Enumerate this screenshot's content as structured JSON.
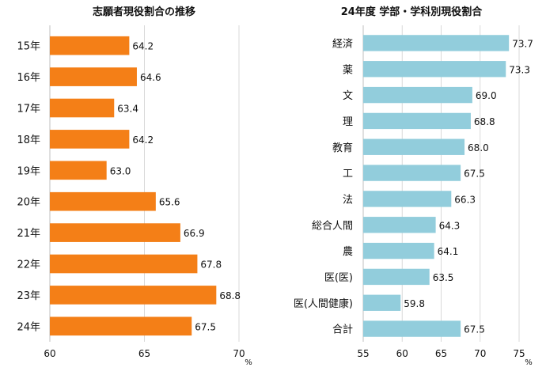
{
  "chart_data": [
    {
      "type": "bar",
      "orientation": "horizontal",
      "title": "志願者現役割合の推移",
      "categories": [
        "15年",
        "16年",
        "17年",
        "18年",
        "19年",
        "20年",
        "21年",
        "22年",
        "23年",
        "24年"
      ],
      "values": [
        64.2,
        64.6,
        63.4,
        64.2,
        63.0,
        65.6,
        66.9,
        67.8,
        68.8,
        67.5
      ],
      "value_labels": [
        "64.2",
        "64.6",
        "63.4",
        "64.2",
        "63.0",
        "65.6",
        "66.9",
        "67.8",
        "68.8",
        "67.5"
      ],
      "xlim": [
        60,
        70
      ],
      "xticks": [
        "60",
        "65",
        "70"
      ],
      "xunit": "%",
      "grid": true,
      "color": "#F47F17"
    },
    {
      "type": "bar",
      "orientation": "horizontal",
      "title": "24年度 学部・学科別現役割合",
      "categories": [
        "経済",
        "薬",
        "文",
        "理",
        "教育",
        "工",
        "法",
        "総合人間",
        "農",
        "医(医)",
        "医(人間健康)",
        "合計"
      ],
      "values": [
        73.7,
        73.3,
        69.0,
        68.8,
        68.0,
        67.5,
        66.3,
        64.3,
        64.1,
        63.5,
        59.8,
        67.5
      ],
      "value_labels": [
        "73.7",
        "73.3",
        "69.0",
        "68.8",
        "68.0",
        "67.5",
        "66.3",
        "64.3",
        "64.1",
        "63.5",
        "59.8",
        "67.5"
      ],
      "xlim": [
        55,
        75
      ],
      "xticks": [
        "55",
        "60",
        "65",
        "70",
        "75"
      ],
      "xunit": "%",
      "grid": true,
      "color": "#92CDDC"
    }
  ]
}
